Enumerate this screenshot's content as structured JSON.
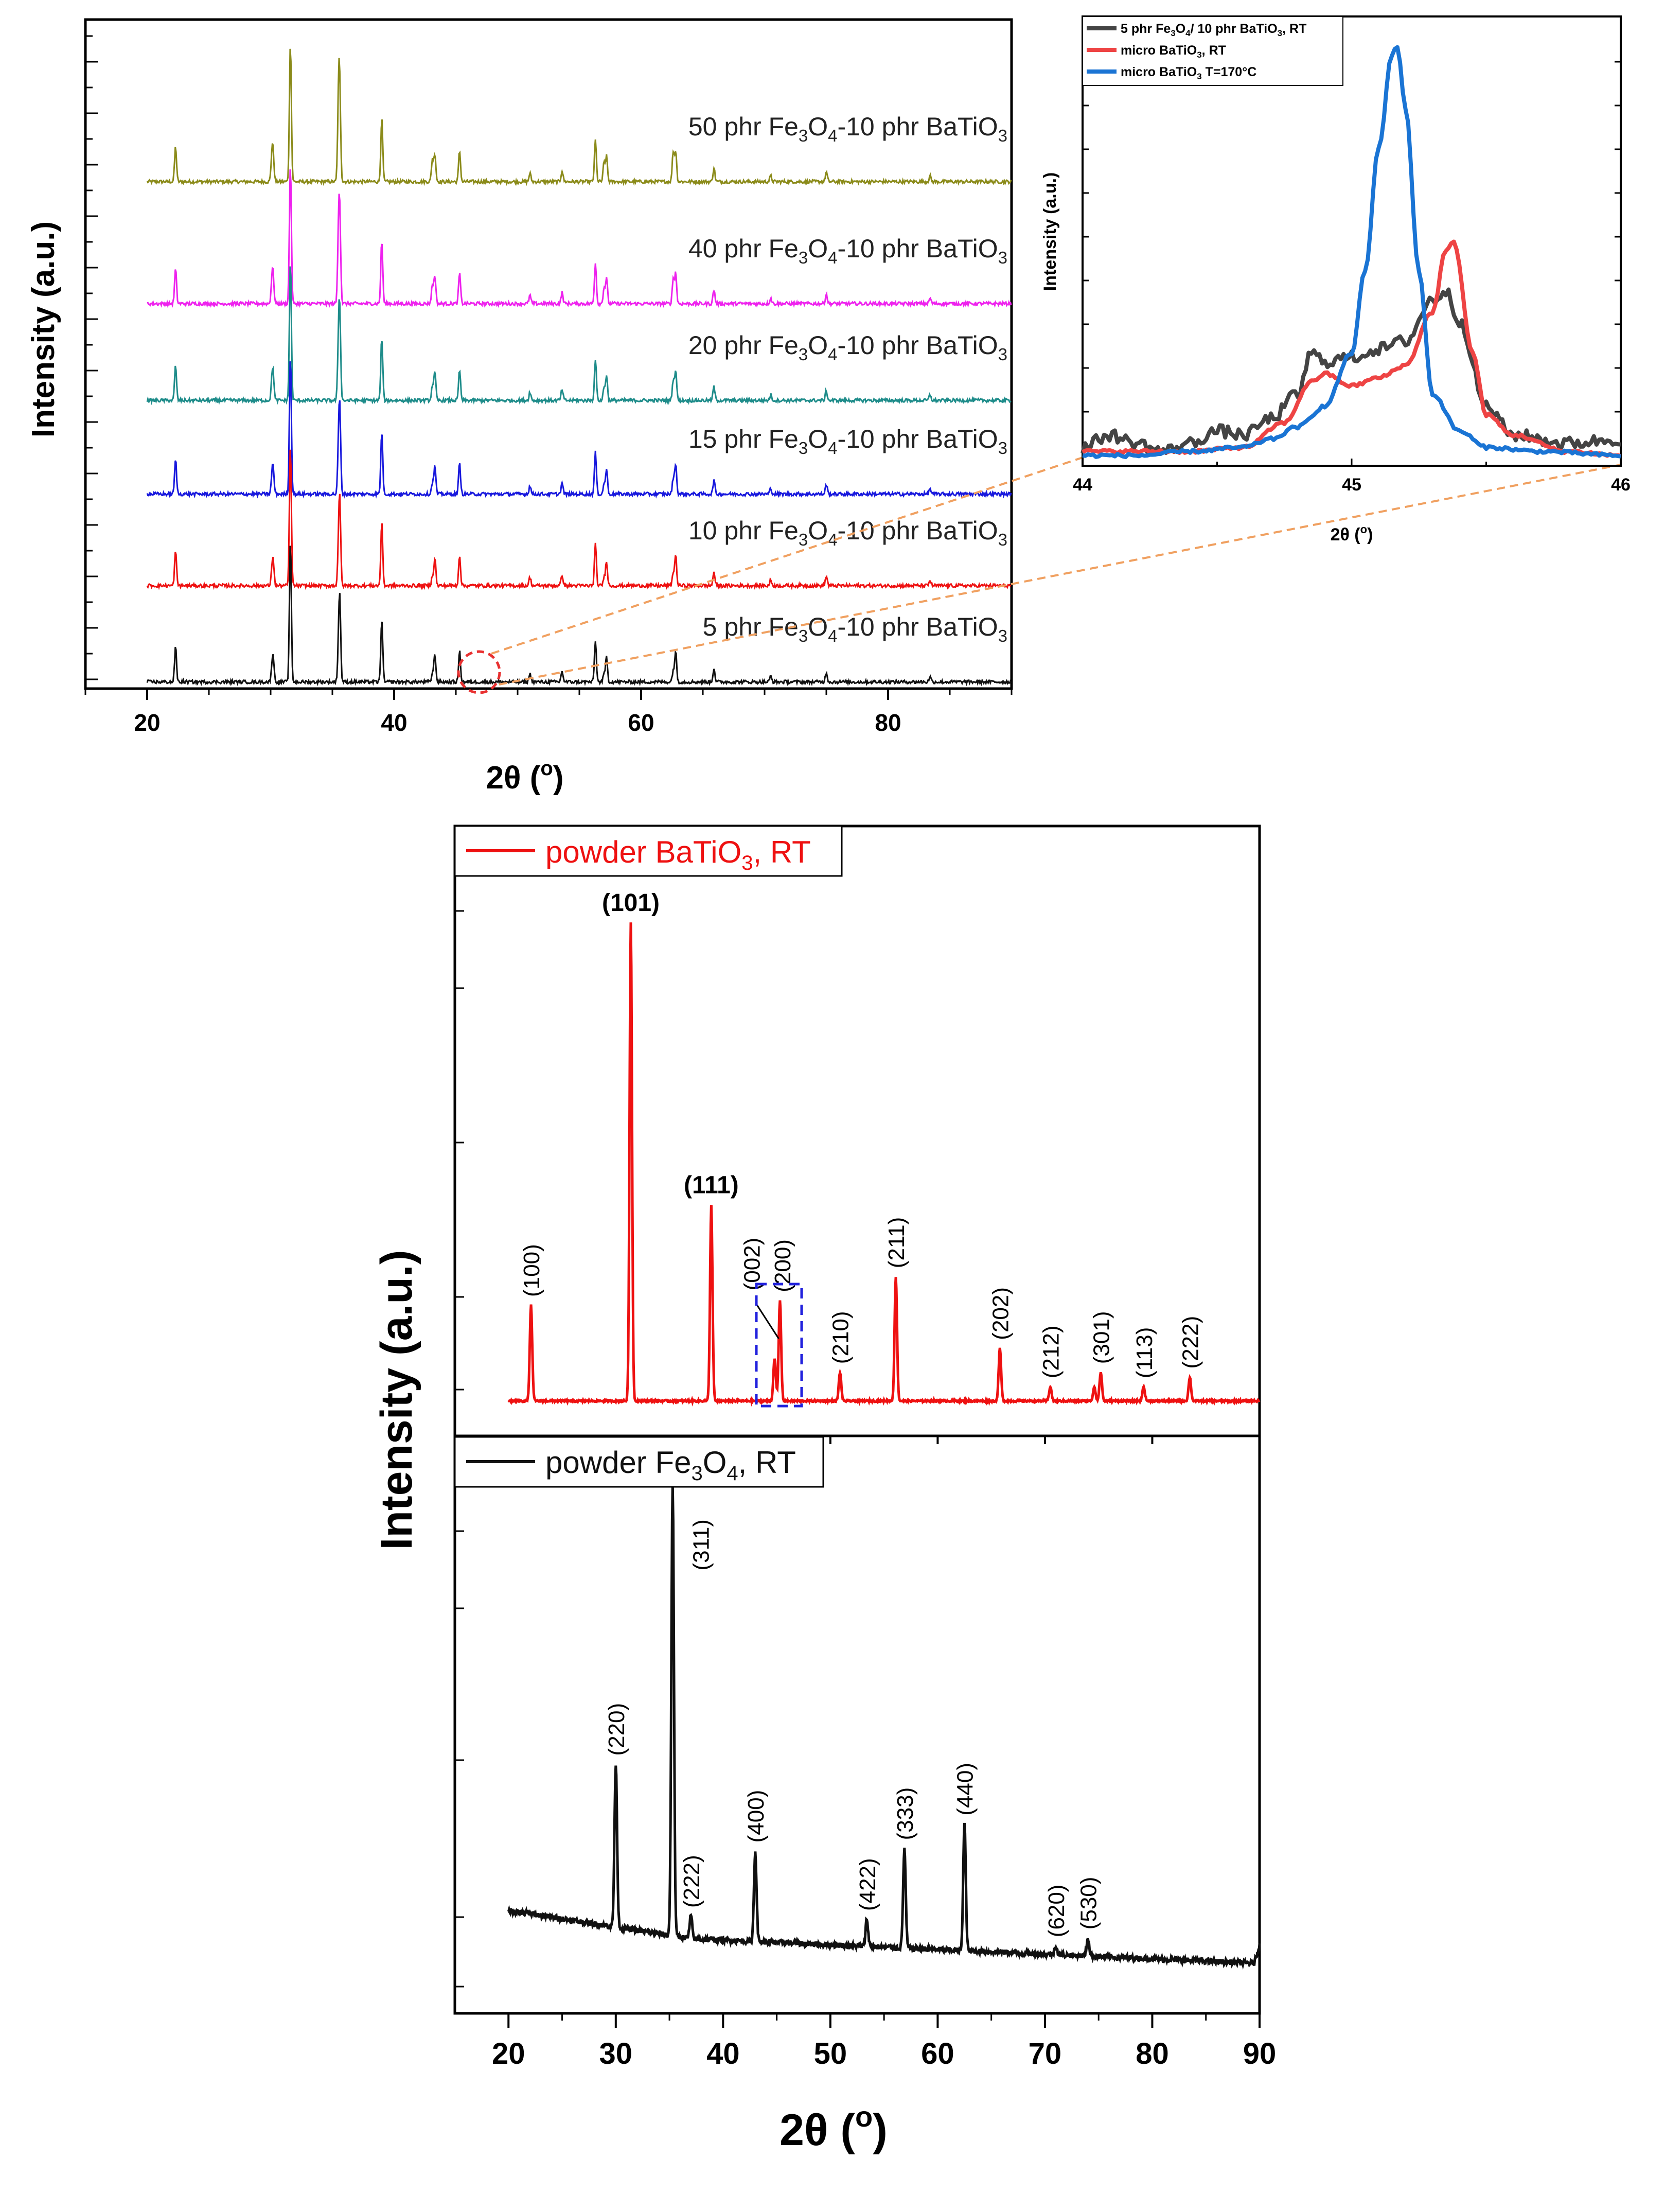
{
  "colors": {
    "olive": "#8b8b1a",
    "magenta": "#ee22ee",
    "teal": "#1e8c8a",
    "blue": "#1818dd",
    "red": "#ee1111",
    "black": "#111111",
    "inset_gray": "#444444",
    "inset_red": "#ee4444",
    "inset_blue": "#1a74d4",
    "zoom_orange": "#f0a060",
    "circle_red": "#e83030",
    "box_blue": "#2222dd"
  },
  "chart_data": [
    {
      "type": "line",
      "id": "composites",
      "title": "",
      "xlabel": "2θ (°)",
      "xlabel_main": "2θ (",
      "xlabel_deg": "o",
      "xlabel_close": ")",
      "ylabel": "Intensity (a.u.)",
      "xlim": [
        15,
        90
      ],
      "xticks": [
        20,
        40,
        60,
        80
      ],
      "series": [
        {
          "name": "50 phr Fe3O4-10 phr BaTiO3",
          "label": {
            "pre": "50 phr Fe",
            "s1": "3",
            "mid1": "O",
            "s2": "4",
            "mid2": "-10 phr BaTiO",
            "s3": "3"
          },
          "color_key": "olive",
          "peak_scale": 1.0,
          "magnetite": 1.2
        },
        {
          "name": "40 phr Fe3O4-10 phr BaTiO3",
          "label": {
            "pre": "40 phr Fe",
            "s1": "3",
            "mid1": "O",
            "s2": "4",
            "mid2": "-10 phr BaTiO",
            "s3": "3"
          },
          "color_key": "magenta",
          "peak_scale": 1.0,
          "magnetite": 1.0
        },
        {
          "name": "20 phr Fe3O4-10 phr BaTiO3",
          "label": {
            "pre": "20 phr Fe",
            "s1": "3",
            "mid1": "O",
            "s2": "4",
            "mid2": "-10 phr BaTiO",
            "s3": "3"
          },
          "color_key": "teal",
          "peak_scale": 1.0,
          "magnetite": 0.8
        },
        {
          "name": "15 phr Fe3O4-10 phr BaTiO3",
          "label": {
            "pre": "15 phr Fe",
            "s1": "3",
            "mid1": "O",
            "s2": "4",
            "mid2": "-10 phr BaTiO",
            "s3": "3"
          },
          "color_key": "blue",
          "peak_scale": 1.0,
          "magnetite": 0.6
        },
        {
          "name": "10 phr Fe3O4-10 phr BaTiO3",
          "label": {
            "pre": "10 phr Fe",
            "s1": "3",
            "mid1": "O",
            "s2": "4",
            "mid2": "-10 phr BaTiO",
            "s3": "3"
          },
          "color_key": "red",
          "peak_scale": 1.0,
          "magnetite": 0.5
        },
        {
          "name": "5 phr Fe3O4-10 phr BaTiO3",
          "label": {
            "pre": "5 phr Fe",
            "s1": "3",
            "mid1": "O",
            "s2": "4",
            "mid2": "-10 phr BaTiO",
            "s3": "3"
          },
          "color_key": "black",
          "peak_scale": 1.0,
          "magnetite": 0.45
        }
      ],
      "peaks": [
        {
          "x": 22.3,
          "h": 0.25
        },
        {
          "x": 30.2,
          "h": 0.18
        },
        {
          "x": 31.6,
          "h": 1.0
        },
        {
          "x": 35.6,
          "h": 0.55
        },
        {
          "x": 39.0,
          "h": 0.45
        },
        {
          "x": 43.3,
          "h": 0.2
        },
        {
          "x": 45.3,
          "h": 0.22
        },
        {
          "x": 51.0,
          "h": 0.06
        },
        {
          "x": 53.6,
          "h": 0.08
        },
        {
          "x": 56.3,
          "h": 0.3
        },
        {
          "x": 57.2,
          "h": 0.18
        },
        {
          "x": 62.8,
          "h": 0.22
        },
        {
          "x": 65.9,
          "h": 0.1
        },
        {
          "x": 70.5,
          "h": 0.04
        },
        {
          "x": 75.0,
          "h": 0.07
        },
        {
          "x": 83.4,
          "h": 0.04
        }
      ],
      "magnetite_peaks": [
        {
          "x": 30.1,
          "h": 0.3
        },
        {
          "x": 35.5,
          "h": 1.0
        },
        {
          "x": 43.1,
          "h": 0.3
        },
        {
          "x": 57.0,
          "h": 0.25
        },
        {
          "x": 62.6,
          "h": 0.4
        }
      ]
    },
    {
      "type": "line",
      "id": "inset",
      "title": "",
      "xlabel": "2θ (°)",
      "xlabel_main": "2θ (",
      "xlabel_deg": "o",
      "xlabel_close": ")",
      "ylabel": "Intensity (a.u.)",
      "xlim": [
        44,
        46
      ],
      "xticks": [
        44,
        45,
        46
      ],
      "legend_position": "top-left",
      "series": [
        {
          "name": "5 phr Fe3O4/ 10 phr BaTiO3, RT",
          "label": {
            "pre": "5 phr Fe",
            "s1": "3",
            "mid1": "O",
            "s2": "4",
            "mid2": "/ 10 phr BaTiO",
            "s3": "3",
            "post": ", RT"
          },
          "color_key": "inset_gray",
          "x": [
            44.0,
            44.1,
            44.2,
            44.3,
            44.4,
            44.5,
            44.6,
            44.7,
            44.8,
            44.85,
            44.9,
            45.0,
            45.1,
            45.2,
            45.3,
            45.35,
            45.4,
            45.5,
            45.6,
            45.8,
            46.0
          ],
          "y": [
            0.02,
            0.05,
            0.03,
            0.01,
            0.03,
            0.06,
            0.05,
            0.09,
            0.15,
            0.25,
            0.23,
            0.24,
            0.26,
            0.28,
            0.38,
            0.4,
            0.33,
            0.12,
            0.05,
            0.03,
            0.04
          ]
        },
        {
          "name": "micro BaTiO3, RT",
          "label": {
            "pre": "micro BaTiO",
            "s1": "3",
            "post": ", RT"
          },
          "color_key": "inset_red",
          "x": [
            44.0,
            44.2,
            44.4,
            44.6,
            44.75,
            44.85,
            44.9,
            45.0,
            45.1,
            45.2,
            45.3,
            45.35,
            45.38,
            45.45,
            45.5,
            45.6,
            45.8,
            46.0
          ],
          "y": [
            0.01,
            0.01,
            0.01,
            0.02,
            0.08,
            0.18,
            0.2,
            0.17,
            0.19,
            0.22,
            0.35,
            0.5,
            0.52,
            0.25,
            0.1,
            0.05,
            0.01,
            0.0
          ]
        },
        {
          "name": "micro BaTiO3 T=170°C",
          "label": {
            "pre": "micro BaTiO",
            "s1": "3",
            "post": " T=170°C"
          },
          "color_key": "inset_blue",
          "x": [
            44.0,
            44.2,
            44.4,
            44.6,
            44.7,
            44.8,
            44.9,
            45.0,
            45.05,
            45.1,
            45.15,
            45.17,
            45.2,
            45.25,
            45.3,
            45.4,
            45.5,
            45.7,
            46.0
          ],
          "y": [
            0.0,
            0.0,
            0.01,
            0.02,
            0.04,
            0.07,
            0.12,
            0.25,
            0.45,
            0.75,
            0.98,
            1.0,
            0.85,
            0.45,
            0.15,
            0.06,
            0.02,
            0.01,
            0.0
          ]
        }
      ]
    },
    {
      "type": "line",
      "id": "powders",
      "title": "",
      "xlabel": "2θ (°)",
      "xlabel_main": "2θ (",
      "xlabel_deg": "o",
      "xlabel_close": ")",
      "ylabel": "Intensity (a.u.)",
      "xlim": [
        15,
        90
      ],
      "xticks": [
        20,
        30,
        40,
        50,
        60,
        70,
        80,
        90
      ],
      "panels": [
        {
          "name": "powder BaTiO3, RT",
          "legend": {
            "pre": "powder BaTiO",
            "s1": "3",
            "post": ", RT"
          },
          "color_key": "red",
          "peaks": [
            {
              "x": 22.1,
              "h": 0.2,
              "label": "(100)",
              "bold": false
            },
            {
              "x": 31.4,
              "h": 1.0,
              "label": "(101)",
              "bold": true
            },
            {
              "x": 38.9,
              "h": 0.41,
              "label": "(111)",
              "bold": true
            },
            {
              "x": 44.8,
              "h": 0.09,
              "label": "(002)",
              "bold": false
            },
            {
              "x": 45.3,
              "h": 0.21,
              "label": "(200)",
              "bold": false
            },
            {
              "x": 50.9,
              "h": 0.06,
              "label": "(210)",
              "bold": false
            },
            {
              "x": 56.1,
              "h": 0.26,
              "label": "(211)",
              "bold": false
            },
            {
              "x": 65.8,
              "h": 0.11,
              "label": "(202)",
              "bold": false
            },
            {
              "x": 70.5,
              "h": 0.03,
              "label": "(212)",
              "bold": false
            },
            {
              "x": 74.6,
              "h": 0.03,
              "label": "",
              "bold": false
            },
            {
              "x": 75.2,
              "h": 0.06,
              "label": "(301)",
              "bold": false
            },
            {
              "x": 79.2,
              "h": 0.03,
              "label": "(113)",
              "bold": false
            },
            {
              "x": 83.5,
              "h": 0.05,
              "label": "(222)",
              "bold": false
            }
          ]
        },
        {
          "name": "powder Fe3O4, RT",
          "legend": {
            "pre": "powder Fe",
            "s1": "3",
            "mid1": "O",
            "s2": "4",
            "post": ", RT"
          },
          "color_key": "black",
          "peaks": [
            {
              "x": 30.0,
              "h": 0.36,
              "label": "(220)",
              "bold": false
            },
            {
              "x": 35.3,
              "h": 1.0,
              "label": "(311)",
              "bold": false
            },
            {
              "x": 37.0,
              "h": 0.05,
              "label": "(222)",
              "bold": false
            },
            {
              "x": 43.0,
              "h": 0.2,
              "label": "(400)",
              "bold": false
            },
            {
              "x": 53.4,
              "h": 0.06,
              "label": "(422)",
              "bold": false
            },
            {
              "x": 56.9,
              "h": 0.22,
              "label": "(333)",
              "bold": false
            },
            {
              "x": 62.5,
              "h": 0.28,
              "label": "(440)",
              "bold": false
            },
            {
              "x": 71.0,
              "h": 0.02,
              "label": "(620)",
              "bold": false
            },
            {
              "x": 74.0,
              "h": 0.04,
              "label": "(530)",
              "bold": false
            }
          ]
        }
      ]
    }
  ]
}
